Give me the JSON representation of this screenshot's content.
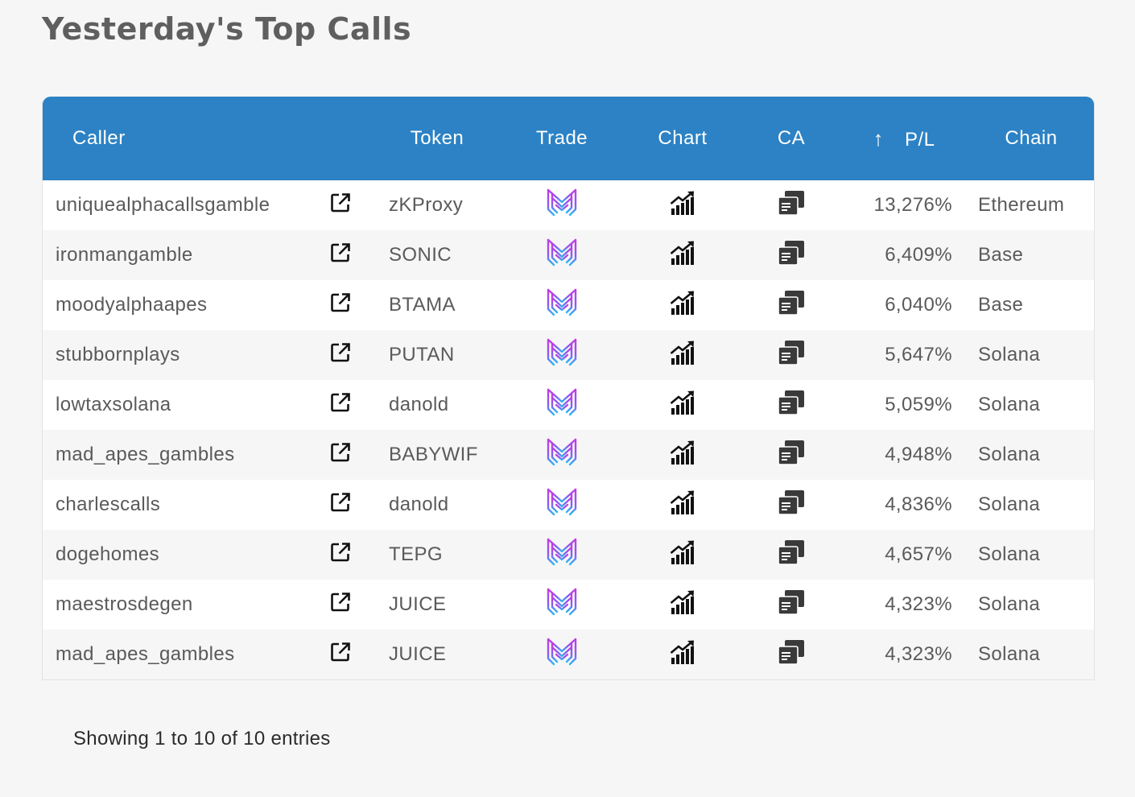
{
  "page": {
    "title": "Yesterday's Top Calls"
  },
  "table": {
    "headers": {
      "caller": "Caller",
      "token": "Token",
      "trade": "Trade",
      "chart": "Chart",
      "ca": "CA",
      "sort_arrow": "↑",
      "pl": "P/L",
      "chain": "Chain"
    },
    "rows": [
      {
        "caller": "uniquealphacallsgamble",
        "token": "zKProxy",
        "pl": "13,276%",
        "chain": "Ethereum"
      },
      {
        "caller": "ironmangamble",
        "token": "SONIC",
        "pl": "6,409%",
        "chain": "Base"
      },
      {
        "caller": "moodyalphaapes",
        "token": "BTAMA",
        "pl": "6,040%",
        "chain": "Base"
      },
      {
        "caller": "stubbornplays",
        "token": "PUTAN",
        "pl": "5,647%",
        "chain": "Solana"
      },
      {
        "caller": "lowtaxsolana",
        "token": "danold",
        "pl": "5,059%",
        "chain": "Solana"
      },
      {
        "caller": "mad_apes_gambles",
        "token": "BABYWIF",
        "pl": "4,948%",
        "chain": "Solana"
      },
      {
        "caller": "charlescalls",
        "token": "danold",
        "pl": "4,836%",
        "chain": "Solana"
      },
      {
        "caller": "dogehomes",
        "token": "TEPG",
        "pl": "4,657%",
        "chain": "Solana"
      },
      {
        "caller": "maestrosdegen",
        "token": "JUICE",
        "pl": "4,323%",
        "chain": "Solana"
      },
      {
        "caller": "mad_apes_gambles",
        "token": "JUICE",
        "pl": "4,323%",
        "chain": "Solana"
      }
    ],
    "icons": {
      "external": "external-link-icon",
      "trade": "trade-logo-icon",
      "chart": "chart-bars-icon",
      "ca": "copy-icon"
    }
  },
  "footer": {
    "info": "Showing 1 to 10 of 10 entries"
  },
  "colors": {
    "header_bg": "#2c82c4",
    "page_bg": "#f6f6f6",
    "title": "#5f5f5f"
  }
}
